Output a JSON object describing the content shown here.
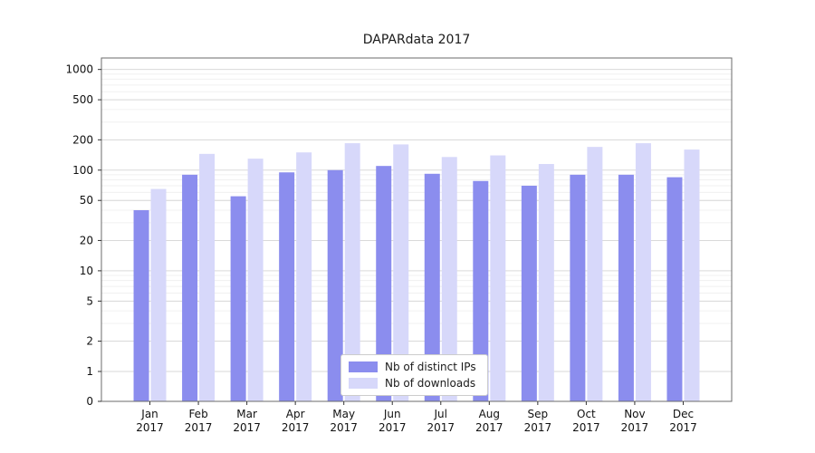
{
  "title": "DAPARdata 2017",
  "chart_data": {
    "type": "bar",
    "title": "DAPARdata 2017",
    "categories": [
      "Jan",
      "Feb",
      "Mar",
      "Apr",
      "May",
      "Jun",
      "Jul",
      "Aug",
      "Sep",
      "Oct",
      "Nov",
      "Dec"
    ],
    "year": "2017",
    "series": [
      {
        "name": "Nb of distinct IPs",
        "color": "#8b8dee",
        "values": [
          40,
          90,
          55,
          95,
          100,
          110,
          92,
          78,
          70,
          90,
          90,
          85
        ]
      },
      {
        "name": "Nb of downloads",
        "color": "#d7d8fa",
        "values": [
          65,
          145,
          130,
          150,
          185,
          180,
          135,
          140,
          115,
          170,
          185,
          160
        ]
      }
    ],
    "xlabel": "",
    "ylabel": "",
    "yscale": "symlog",
    "y_ticks": [
      0,
      1,
      2,
      5,
      10,
      20,
      50,
      100,
      200,
      500,
      1000
    ],
    "ylim": [
      0,
      1300
    ],
    "grid": true,
    "legend_position": "lower center"
  }
}
